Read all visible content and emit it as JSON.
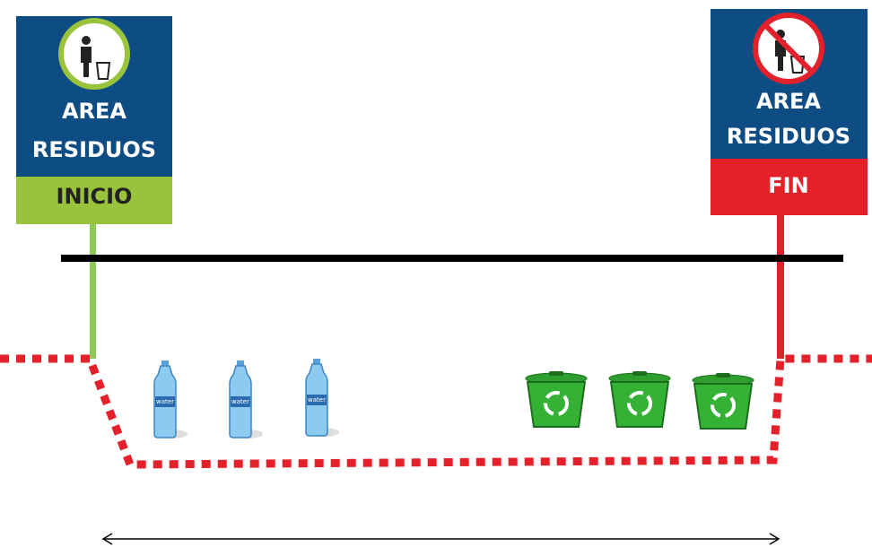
{
  "start_sign": {
    "line1": "AREA",
    "line2": "RESIDUOS",
    "label": "INICIO"
  },
  "end_sign": {
    "line1": "AREA",
    "line2": "RESIDUOS",
    "label": "FIN"
  }
}
